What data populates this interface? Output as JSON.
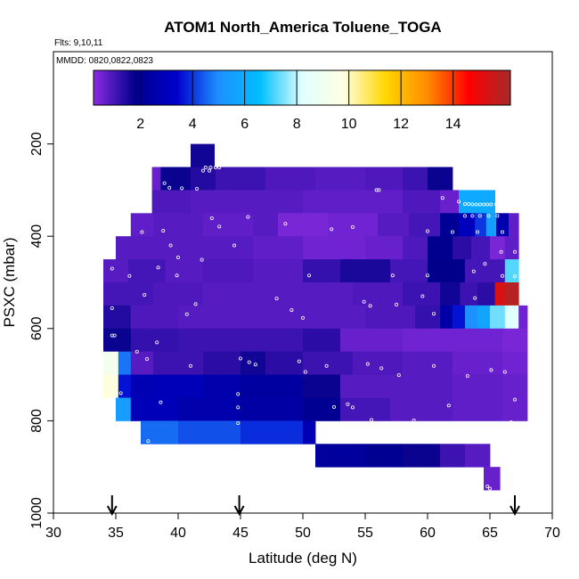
{
  "chart_data": {
    "type": "heatmap",
    "title": "ATOM1 North_America Toluene_TOGA",
    "flights_label": "Flts: 9,10,11",
    "dates_label": "MMDD: 0820,0822,0823",
    "xlabel": "Latitude (deg N)",
    "ylabel": "PSXC (mbar)",
    "xlim": [
      30,
      70
    ],
    "ylim": [
      1000,
      0
    ],
    "x_ticks": [
      "30",
      "35",
      "40",
      "45",
      "50",
      "55",
      "60",
      "65",
      "70"
    ],
    "y_ticks": [
      "200",
      "400",
      "600",
      "800",
      "1000"
    ],
    "colorbar": {
      "range": [
        0.2,
        16.2
      ],
      "ticks": [
        "2",
        "4",
        "6",
        "8",
        "10",
        "12",
        "14"
      ],
      "colors": [
        "#8a2be2",
        "#00008b",
        "#0000cd",
        "#1e90ff",
        "#00bfff",
        "#e0ffff",
        "#ffffe0",
        "#ffd700",
        "#ff8c00",
        "#ff0000",
        "#a52a2a"
      ]
    },
    "arrows_at_latitude": [
      34.7,
      44.9,
      67.0
    ],
    "layers": [
      {
        "p0": 200,
        "p1": 250,
        "cells": [
          [
            41.0,
            42.9,
            1.6
          ]
        ]
      },
      {
        "p0": 250,
        "p1": 300,
        "cells": [
          [
            37.9,
            38.6,
            0.6
          ],
          [
            38.6,
            41.0,
            1.7
          ],
          [
            41.0,
            43.0,
            1.4
          ],
          [
            43.0,
            47.0,
            1.1
          ],
          [
            47.0,
            51.0,
            0.9
          ],
          [
            51.0,
            55.0,
            0.8
          ],
          [
            55.0,
            58.0,
            0.9
          ],
          [
            58.0,
            60.0,
            1.1
          ],
          [
            60.0,
            62.0,
            1.7
          ]
        ]
      },
      {
        "p0": 300,
        "p1": 350,
        "cells": [
          [
            37.9,
            41.0,
            0.9
          ],
          [
            41.0,
            45.0,
            0.8
          ],
          [
            45.0,
            50.0,
            0.8
          ],
          [
            50.0,
            55.0,
            0.7
          ],
          [
            55.0,
            58.0,
            0.7
          ],
          [
            58.0,
            61.0,
            0.9
          ],
          [
            61.0,
            62.5,
            0.6
          ],
          [
            62.5,
            65.4,
            5.9
          ]
        ]
      },
      {
        "p0": 350,
        "p1": 400,
        "cells": [
          [
            36.2,
            38.0,
            0.7
          ],
          [
            38.0,
            42.0,
            0.8
          ],
          [
            42.0,
            46.0,
            0.7
          ],
          [
            46.0,
            48.0,
            0.8
          ],
          [
            48.0,
            52.0,
            0.4
          ],
          [
            52.0,
            56.0,
            0.5
          ],
          [
            56.0,
            58.5,
            0.8
          ],
          [
            58.5,
            61.0,
            1.0
          ],
          [
            61.0,
            62.5,
            2.1
          ],
          [
            62.5,
            63.8,
            3.0
          ],
          [
            63.8,
            64.7,
            4.0
          ],
          [
            64.7,
            65.5,
            5.4
          ],
          [
            65.5,
            66.5,
            2.6
          ],
          [
            66.5,
            67.3,
            0.7
          ]
        ]
      },
      {
        "p0": 400,
        "p1": 450,
        "cells": [
          [
            35.0,
            38.0,
            0.8
          ],
          [
            38.0,
            42.0,
            0.8
          ],
          [
            42.0,
            46.0,
            0.8
          ],
          [
            46.0,
            50.0,
            0.7
          ],
          [
            50.0,
            55.0,
            0.5
          ],
          [
            55.0,
            58.0,
            0.6
          ],
          [
            58.0,
            60.0,
            0.9
          ],
          [
            60.0,
            62.0,
            1.9
          ],
          [
            62.0,
            63.5,
            1.3
          ],
          [
            63.5,
            65.0,
            1.0
          ],
          [
            65.0,
            66.2,
            0.4
          ],
          [
            66.2,
            67.3,
            0.7
          ]
        ]
      },
      {
        "p0": 450,
        "p1": 500,
        "cells": [
          [
            34.0,
            36.0,
            0.8
          ],
          [
            36.0,
            39.0,
            1.0
          ],
          [
            39.0,
            42.0,
            0.8
          ],
          [
            42.0,
            46.0,
            0.9
          ],
          [
            46.0,
            50.0,
            0.8
          ],
          [
            50.0,
            53.0,
            1.2
          ],
          [
            53.0,
            57.0,
            1.5
          ],
          [
            57.0,
            60.0,
            1.0
          ],
          [
            60.0,
            63.0,
            1.8
          ],
          [
            63.0,
            66.2,
            1.0
          ],
          [
            66.2,
            67.3,
            7.2
          ]
        ]
      },
      {
        "p0": 500,
        "p1": 550,
        "cells": [
          [
            34.0,
            38.0,
            1.0
          ],
          [
            38.0,
            42.0,
            0.9
          ],
          [
            42.0,
            46.0,
            0.8
          ],
          [
            46.0,
            50.0,
            0.8
          ],
          [
            50.0,
            54.0,
            0.8
          ],
          [
            54.0,
            58.0,
            0.9
          ],
          [
            58.0,
            61.0,
            1.1
          ],
          [
            61.0,
            62.6,
            1.6
          ],
          [
            62.6,
            64.0,
            1.1
          ],
          [
            64.0,
            65.4,
            1.3
          ],
          [
            65.4,
            66.2,
            15.3
          ],
          [
            66.2,
            67.3,
            15.9
          ]
        ]
      },
      {
        "p0": 550,
        "p1": 600,
        "cells": [
          [
            34.0,
            36.2,
            1.4
          ],
          [
            36.2,
            40.0,
            0.9
          ],
          [
            40.0,
            45.0,
            0.8
          ],
          [
            45.0,
            50.0,
            0.8
          ],
          [
            50.0,
            55.0,
            0.8
          ],
          [
            55.0,
            59.0,
            0.9
          ],
          [
            59.0,
            61.0,
            1.2
          ],
          [
            61.0,
            62.0,
            2.4
          ],
          [
            62.0,
            63.0,
            3.6
          ],
          [
            63.0,
            64.0,
            5.0
          ],
          [
            64.0,
            65.0,
            5.7
          ],
          [
            65.0,
            66.2,
            7.4
          ],
          [
            66.2,
            67.3,
            8.2
          ],
          [
            67.3,
            68.0,
            0.5
          ]
        ]
      },
      {
        "p0": 600,
        "p1": 650,
        "cells": [
          [
            34.0,
            36.2,
            1.7
          ],
          [
            36.2,
            40.0,
            1.2
          ],
          [
            40.0,
            45.0,
            1.1
          ],
          [
            45.0,
            50.0,
            1.1
          ],
          [
            50.0,
            53.0,
            1.3
          ],
          [
            53.0,
            58.0,
            0.6
          ],
          [
            58.0,
            62.0,
            0.5
          ],
          [
            62.0,
            66.0,
            0.5
          ],
          [
            66.0,
            68.0,
            0.4
          ]
        ]
      },
      {
        "p0": 650,
        "p1": 700,
        "cells": [
          [
            34.0,
            35.2,
            9.2
          ],
          [
            35.2,
            36.2,
            4.7
          ],
          [
            36.2,
            38.0,
            0.8
          ],
          [
            38.0,
            42.0,
            1.1
          ],
          [
            42.0,
            45.0,
            1.3
          ],
          [
            45.0,
            47.0,
            1.6
          ],
          [
            47.0,
            50.0,
            1.3
          ],
          [
            50.0,
            54.0,
            1.1
          ],
          [
            54.0,
            58.0,
            0.9
          ],
          [
            58.0,
            62.0,
            0.8
          ],
          [
            62.0,
            66.0,
            0.6
          ],
          [
            66.0,
            68.0,
            0.5
          ]
        ]
      },
      {
        "p0": 700,
        "p1": 750,
        "cells": [
          [
            34.0,
            35.2,
            9.8
          ],
          [
            35.2,
            36.2,
            3.6
          ],
          [
            36.2,
            38.0,
            2.8
          ],
          [
            38.0,
            42.0,
            2.9
          ],
          [
            42.0,
            45.0,
            2.6
          ],
          [
            45.0,
            50.0,
            2.3
          ],
          [
            50.0,
            53.0,
            1.7
          ],
          [
            53.0,
            57.0,
            0.8
          ],
          [
            57.0,
            62.0,
            0.8
          ],
          [
            62.0,
            66.0,
            0.7
          ],
          [
            66.0,
            68.0,
            0.6
          ]
        ]
      },
      {
        "p0": 750,
        "p1": 800,
        "cells": [
          [
            35.0,
            36.2,
            5.4
          ],
          [
            36.2,
            40.0,
            2.9
          ],
          [
            40.0,
            45.0,
            2.6
          ],
          [
            45.0,
            50.0,
            2.4
          ],
          [
            50.0,
            53.0,
            2.0
          ],
          [
            53.0,
            57.0,
            1.0
          ],
          [
            57.0,
            62.0,
            0.8
          ],
          [
            62.0,
            66.0,
            0.7
          ],
          [
            66.0,
            68.0,
            0.6
          ]
        ]
      },
      {
        "p0": 800,
        "p1": 850,
        "cells": [
          [
            37.0,
            40.0,
            4.6
          ],
          [
            40.0,
            45.0,
            4.3
          ],
          [
            45.0,
            50.0,
            3.9
          ],
          [
            50.0,
            51.0,
            2.8
          ]
        ]
      },
      {
        "p0": 850,
        "p1": 900,
        "cells": [
          [
            51.0,
            55.0,
            2.2
          ],
          [
            55.0,
            58.0,
            2.0
          ],
          [
            58.0,
            61.0,
            1.7
          ],
          [
            61.0,
            63.0,
            1.1
          ],
          [
            63.0,
            65.0,
            0.8
          ]
        ]
      },
      {
        "p0": 900,
        "p1": 950,
        "cells": [
          [
            64.5,
            65.8,
            0.6
          ]
        ]
      }
    ],
    "points": [
      [
        42.2,
        251
      ],
      [
        42.6,
        251
      ],
      [
        43.0,
        251
      ],
      [
        43.3,
        251
      ],
      [
        42.0,
        258
      ],
      [
        42.5,
        258
      ],
      [
        38.9,
        285
      ],
      [
        39.3,
        295
      ],
      [
        40.3,
        296
      ],
      [
        41.5,
        297
      ],
      [
        55.9,
        300
      ],
      [
        56.1,
        300
      ],
      [
        61.2,
        317
      ],
      [
        62.5,
        325
      ],
      [
        63.0,
        330
      ],
      [
        63.3,
        330
      ],
      [
        63.6,
        331
      ],
      [
        63.9,
        331
      ],
      [
        64.2,
        331
      ],
      [
        64.5,
        331
      ],
      [
        64.8,
        331
      ],
      [
        65.1,
        331
      ],
      [
        65.5,
        331
      ],
      [
        65.9,
        331
      ],
      [
        66.3,
        331
      ],
      [
        63.0,
        356
      ],
      [
        63.6,
        356
      ],
      [
        64.2,
        356
      ],
      [
        64.9,
        356
      ],
      [
        65.6,
        356
      ],
      [
        45.6,
        358
      ],
      [
        42.7,
        361
      ],
      [
        43.3,
        379
      ],
      [
        48.6,
        373
      ],
      [
        54.0,
        380
      ],
      [
        52.3,
        385
      ],
      [
        38.8,
        388
      ],
      [
        37.1,
        391
      ],
      [
        60.0,
        389
      ],
      [
        62.0,
        391
      ],
      [
        64.0,
        391
      ],
      [
        66.0,
        391
      ],
      [
        44.5,
        420
      ],
      [
        39.4,
        420
      ],
      [
        65.9,
        434
      ],
      [
        67.0,
        434
      ],
      [
        40.0,
        446
      ],
      [
        41.9,
        451
      ],
      [
        36.1,
        486
      ],
      [
        38.4,
        468
      ],
      [
        39.9,
        485
      ],
      [
        50.5,
        485
      ],
      [
        57.2,
        485
      ],
      [
        64.6,
        460
      ],
      [
        63.7,
        476
      ],
      [
        60.0,
        485
      ],
      [
        66.0,
        486
      ],
      [
        67.0,
        487
      ],
      [
        34.7,
        470
      ],
      [
        34.7,
        556
      ],
      [
        37.3,
        527
      ],
      [
        40.7,
        569
      ],
      [
        41.4,
        547
      ],
      [
        47.9,
        535
      ],
      [
        49.1,
        560
      ],
      [
        50.0,
        577
      ],
      [
        54.9,
        542
      ],
      [
        55.4,
        551
      ],
      [
        59.6,
        530
      ],
      [
        60.5,
        568
      ],
      [
        57.5,
        548
      ],
      [
        63.8,
        534
      ],
      [
        34.9,
        615
      ],
      [
        34.7,
        615
      ],
      [
        38.3,
        630
      ],
      [
        36.7,
        650
      ],
      [
        37.5,
        666
      ],
      [
        45.0,
        665
      ],
      [
        45.7,
        673
      ],
      [
        46.2,
        678
      ],
      [
        41.0,
        681
      ],
      [
        49.7,
        671
      ],
      [
        50.2,
        694
      ],
      [
        51.9,
        681
      ],
      [
        55.2,
        677
      ],
      [
        56.3,
        686
      ],
      [
        57.7,
        701
      ],
      [
        60.5,
        681
      ],
      [
        63.2,
        703
      ],
      [
        65.1,
        690
      ],
      [
        66.2,
        694
      ],
      [
        44.8,
        742
      ],
      [
        44.8,
        771
      ],
      [
        44.8,
        805
      ],
      [
        35.0,
        745
      ],
      [
        35.4,
        740
      ],
      [
        38.6,
        760
      ],
      [
        52.5,
        770
      ],
      [
        53.6,
        764
      ],
      [
        54.0,
        771
      ],
      [
        55.5,
        798
      ],
      [
        58.9,
        799
      ],
      [
        59.1,
        805
      ],
      [
        59.2,
        810
      ],
      [
        59.3,
        820
      ],
      [
        62.5,
        808
      ],
      [
        67.0,
        818
      ],
      [
        66.7,
        803
      ],
      [
        67.0,
        754
      ],
      [
        61.7,
        767
      ],
      [
        37.6,
        844
      ],
      [
        64.8,
        942
      ],
      [
        65.0,
        947
      ]
    ]
  }
}
